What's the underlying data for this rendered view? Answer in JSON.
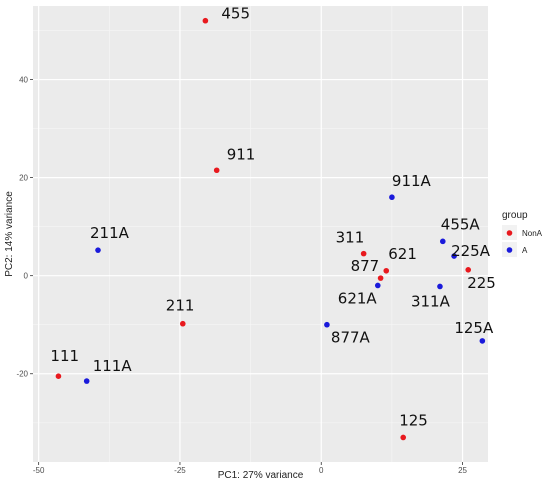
{
  "chart_data": {
    "type": "scatter",
    "xlabel": "PC1: 27% variance",
    "ylabel": "PC2: 14% variance",
    "xlim": [
      -51,
      29.5
    ],
    "ylim": [
      -38,
      55
    ],
    "x_ticks": [
      -50,
      -25,
      0,
      25
    ],
    "y_ticks": [
      -20,
      0,
      20,
      40
    ],
    "x_tick_labels": [
      "-50",
      "-25",
      "0",
      "25"
    ],
    "y_tick_labels": [
      "-20",
      "0",
      "20",
      "40"
    ],
    "grid": true,
    "legend": {
      "title": "group",
      "placement": "right",
      "entries": [
        {
          "name": "NonA",
          "color": "#e8191e"
        },
        {
          "name": "A",
          "color": "#1a1adb"
        }
      ]
    },
    "series": [
      {
        "name": "NonA",
        "color": "#e8191e",
        "points": [
          {
            "label": "455",
            "x": -20.5,
            "y": 52
          },
          {
            "label": "911",
            "x": -18.5,
            "y": 21.5
          },
          {
            "label": "311",
            "x": 7.5,
            "y": 4.5
          },
          {
            "label": "621",
            "x": 11.5,
            "y": 1
          },
          {
            "label": "877",
            "x": 10.5,
            "y": -0.5
          },
          {
            "label": "225",
            "x": 26,
            "y": 1.2
          },
          {
            "label": "211",
            "x": -24.5,
            "y": -9.8
          },
          {
            "label": "111",
            "x": -46.5,
            "y": -20.5
          },
          {
            "label": "125",
            "x": 14.5,
            "y": -33
          }
        ]
      },
      {
        "name": "A",
        "color": "#1a1adb",
        "points": [
          {
            "label": "911A",
            "x": 12.5,
            "y": 16
          },
          {
            "label": "211A",
            "x": -39.5,
            "y": 5.2
          },
          {
            "label": "455A",
            "x": 21.5,
            "y": 7
          },
          {
            "label": "225A",
            "x": 23.5,
            "y": 4
          },
          {
            "label": "621A",
            "x": 10,
            "y": -2
          },
          {
            "label": "311A",
            "x": 21,
            "y": -2.2
          },
          {
            "label": "877A",
            "x": 1,
            "y": -10
          },
          {
            "label": "125A",
            "x": 28.5,
            "y": -13.3
          },
          {
            "label": "111A",
            "x": -41.5,
            "y": -21.5
          }
        ]
      }
    ]
  }
}
